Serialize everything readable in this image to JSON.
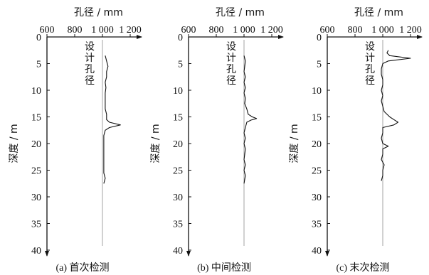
{
  "chart_data": [
    {
      "type": "line",
      "caption": "(a) 首次检测",
      "xlabel": "孔径 / mm",
      "ylabel": "深度 / m",
      "design_label": [
        "设",
        "计",
        "孔",
        "径"
      ],
      "xlim": [
        600,
        1200
      ],
      "ylim": [
        0,
        40
      ],
      "x_ticks": [
        "600",
        "800",
        "1 000",
        "1 200"
      ],
      "y_ticks": [
        "0",
        "5",
        "10",
        "15",
        "20",
        "25",
        "30",
        "35",
        "40"
      ],
      "design_value": 1000,
      "series": [
        {
          "depth": [
            3.5,
            4.5,
            5.5,
            6.5,
            7.5,
            8.5,
            9.5,
            10.5,
            11.5,
            12.5,
            13.5,
            14.5,
            15.5,
            16.0,
            16.5,
            17.0,
            17.5,
            18.5,
            19.5,
            20.5,
            21.5,
            22.5,
            23.5,
            24.5,
            25.5,
            26.5,
            27.5
          ],
          "diameter": [
            1020,
            1030,
            1040,
            1030,
            1030,
            1020,
            1025,
            1020,
            1020,
            1020,
            1020,
            1030,
            1030,
            1050,
            1130,
            1050,
            1020,
            1010,
            1010,
            1010,
            1010,
            1010,
            1010,
            1010,
            1010,
            1020,
            1010
          ]
        }
      ]
    },
    {
      "type": "line",
      "caption": "(b) 中间检测",
      "xlabel": "孔径 / mm",
      "ylabel": "深度 / m",
      "design_label": [
        "设",
        "计",
        "孔",
        "径"
      ],
      "xlim": [
        600,
        1200
      ],
      "ylim": [
        0,
        40
      ],
      "x_ticks": [
        "600",
        "800",
        "1 000",
        "1 200"
      ],
      "y_ticks": [
        "0",
        "5",
        "10",
        "15",
        "20",
        "25",
        "30",
        "35",
        "40"
      ],
      "design_value": 1000,
      "series": [
        {
          "depth": [
            3.5,
            4.5,
            5.5,
            6.5,
            7.5,
            8.5,
            9.5,
            10.5,
            11.5,
            12.5,
            13.5,
            14.5,
            15.0,
            15.3,
            15.6,
            16.0,
            17.0,
            18.0,
            19.0,
            20.0,
            21.0,
            22.0,
            23.0,
            24.0,
            25.0,
            26.0,
            27.5
          ],
          "diameter": [
            1000,
            1010,
            1005,
            1000,
            1010,
            1000,
            1010,
            1000,
            1010,
            1005,
            1020,
            1030,
            1060,
            1090,
            1050,
            1020,
            1010,
            1000,
            1010,
            1000,
            1010,
            1005,
            1000,
            1010,
            1000,
            1010,
            1000
          ]
        }
      ]
    },
    {
      "type": "line",
      "caption": "(c) 末次检测",
      "xlabel": "孔径 / mm",
      "ylabel": "深度 / m",
      "design_label": [
        "设",
        "计",
        "孔",
        "径"
      ],
      "xlim": [
        600,
        1200
      ],
      "ylim": [
        0,
        40
      ],
      "x_ticks": [
        "600",
        "800",
        "1 000",
        "1 200"
      ],
      "y_ticks": [
        "0",
        "5",
        "10",
        "15",
        "20",
        "25",
        "30",
        "35",
        "40"
      ],
      "design_value": 1000,
      "series": [
        {
          "depth": [
            2.5,
            3.0,
            3.5,
            4.0,
            4.5,
            5.0,
            6.0,
            7.0,
            8.0,
            9.0,
            10.0,
            11.0,
            12.0,
            13.0,
            14.0,
            15.0,
            15.5,
            16.0,
            16.5,
            17.0,
            18.0,
            19.0,
            20.0,
            20.5,
            21.0,
            22.0,
            23.0,
            24.0,
            25.0,
            26.0,
            27.0
          ],
          "diameter": [
            1040,
            1030,
            1050,
            1200,
            1040,
            1000,
            990,
            990,
            1000,
            1000,
            990,
            1000,
            990,
            1000,
            1010,
            1050,
            1080,
            1110,
            1080,
            1000,
            1000,
            990,
            1000,
            1040,
            1000,
            1000,
            990,
            1010,
            1000,
            1000,
            990
          ]
        }
      ]
    }
  ]
}
